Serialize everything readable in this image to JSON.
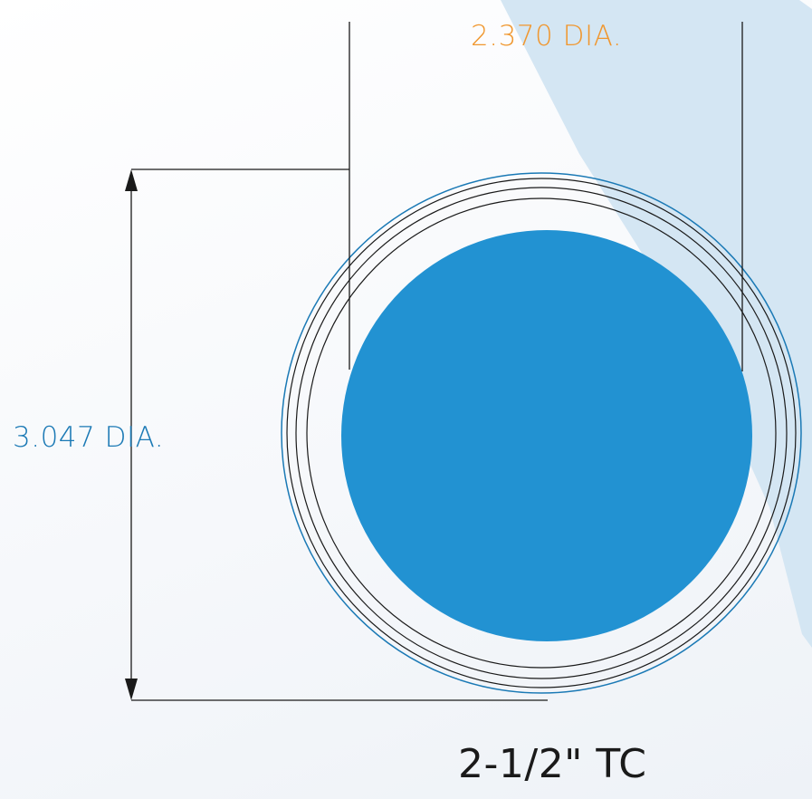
{
  "dimensions": {
    "inner_diameter_label": "2.370 DIA.",
    "outer_diameter_label": "3.047 DIA."
  },
  "part": {
    "size_label": "2-1/2\"  TC"
  },
  "colors": {
    "inner_label": "#f0972f",
    "outer_label": "#1a79b5",
    "fill": "#2292d2",
    "outer_ring": "#1a79b5",
    "line": "#1a1a1a",
    "background_band": "#d4e6f3"
  }
}
